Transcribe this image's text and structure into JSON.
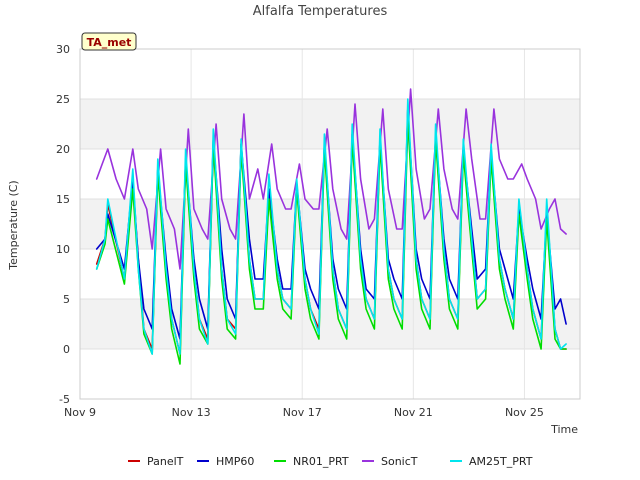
{
  "chart_data": {
    "type": "line",
    "title": "Alfalfa Temperatures",
    "xlabel": "Time",
    "ylabel": "Temperature (C)",
    "tag": "TA_met",
    "ylim": [
      -5,
      30
    ],
    "yticks": [
      -5,
      0,
      5,
      10,
      15,
      20,
      25,
      30
    ],
    "xlim": [
      0,
      18
    ],
    "xticks": [
      {
        "value": 0,
        "label": "Nov 9"
      },
      {
        "value": 4,
        "label": "Nov 13"
      },
      {
        "value": 8,
        "label": "Nov 17"
      },
      {
        "value": 12,
        "label": "Nov 21"
      },
      {
        "value": 16,
        "label": "Nov 25"
      }
    ],
    "grid": true,
    "legend_position": "bottom",
    "daily_extremes": {
      "note_days_from_nov9": [
        0.6,
        1.6,
        2.6,
        3.6,
        4.6,
        5.6,
        6.6,
        7.6,
        8.6,
        9.6,
        10.6,
        11.6,
        12.6,
        13.6,
        14.6,
        15.6,
        16.6,
        17.4
      ]
    },
    "series": [
      {
        "name": "PanelT",
        "color": "#cc0000",
        "x": [
          0.6,
          0.9,
          1.0,
          1.6,
          1.9,
          2.1,
          2.3,
          2.6,
          2.8,
          3.1,
          3.3,
          3.6,
          3.8,
          4.1,
          4.3,
          4.6,
          4.8,
          5.1,
          5.3,
          5.6,
          5.8,
          6.1,
          6.3,
          6.6,
          6.8,
          7.1,
          7.3,
          7.6,
          7.8,
          8.1,
          8.3,
          8.6,
          8.8,
          9.1,
          9.3,
          9.6,
          9.8,
          10.1,
          10.3,
          10.6,
          10.8,
          11.1,
          11.3,
          11.6,
          11.8,
          12.1,
          12.3,
          12.6,
          12.8,
          13.1,
          13.3,
          13.6,
          13.8,
          14.1,
          14.3,
          14.6,
          14.8,
          15.1,
          15.3,
          15.6,
          15.8,
          16.1,
          16.3,
          16.6,
          16.8,
          17.1,
          17.3,
          17.5
        ],
        "y": [
          8.5,
          11,
          14.5,
          7,
          16.5,
          9,
          2,
          0,
          18,
          8,
          3,
          -0.5,
          19,
          8,
          3,
          1,
          21,
          8,
          3,
          2,
          20.5,
          9,
          5,
          5,
          15.5,
          8,
          5,
          4,
          16.5,
          7,
          4,
          2,
          20.5,
          8,
          4,
          2,
          21.5,
          9,
          5,
          3,
          21,
          8,
          5,
          3,
          24,
          9,
          5,
          3,
          21.5,
          10,
          5,
          3,
          20,
          11,
          5,
          6,
          19.5,
          9,
          6,
          3,
          14,
          8,
          4,
          1,
          13.5,
          2,
          0,
          0
        ]
      },
      {
        "name": "HMP60",
        "color": "#0000cc",
        "x": [
          0.6,
          0.9,
          1.0,
          1.6,
          1.9,
          2.1,
          2.3,
          2.6,
          2.8,
          3.1,
          3.3,
          3.6,
          3.8,
          4.1,
          4.3,
          4.6,
          4.8,
          5.1,
          5.3,
          5.6,
          5.8,
          6.1,
          6.3,
          6.6,
          6.8,
          7.1,
          7.3,
          7.6,
          7.8,
          8.1,
          8.3,
          8.6,
          8.8,
          9.1,
          9.3,
          9.6,
          9.8,
          10.1,
          10.3,
          10.6,
          10.8,
          11.1,
          11.3,
          11.6,
          11.8,
          12.1,
          12.3,
          12.6,
          12.8,
          13.1,
          13.3,
          13.6,
          13.8,
          14.1,
          14.3,
          14.6,
          14.8,
          15.1,
          15.3,
          15.6,
          15.8,
          16.1,
          16.3,
          16.6,
          16.8,
          17.1,
          17.3,
          17.5
        ],
        "y": [
          10,
          11,
          13.5,
          8,
          17,
          9,
          4,
          2,
          18,
          9,
          4,
          1,
          19,
          9,
          5,
          2,
          21,
          10,
          5,
          3,
          20.5,
          11,
          7,
          7,
          16,
          9,
          6,
          6,
          16.5,
          8,
          6,
          4,
          20.5,
          9,
          6,
          4,
          21.5,
          10,
          6,
          5,
          21,
          9,
          7,
          5,
          24,
          10,
          7,
          5,
          21.5,
          11,
          7,
          5,
          20,
          12,
          7,
          8,
          19.5,
          10,
          8,
          5,
          14,
          9,
          6,
          3,
          13.5,
          4,
          5,
          2.5
        ]
      },
      {
        "name": "NR01_PRT",
        "color": "#00dd00",
        "x": [
          0.6,
          0.9,
          1.0,
          1.6,
          1.9,
          2.1,
          2.3,
          2.6,
          2.8,
          3.1,
          3.3,
          3.6,
          3.8,
          4.1,
          4.3,
          4.6,
          4.8,
          5.1,
          5.3,
          5.6,
          5.8,
          6.1,
          6.3,
          6.6,
          6.8,
          7.1,
          7.3,
          7.6,
          7.8,
          8.1,
          8.3,
          8.6,
          8.8,
          9.1,
          9.3,
          9.6,
          9.8,
          10.1,
          10.3,
          10.6,
          10.8,
          11.1,
          11.3,
          11.6,
          11.8,
          12.1,
          12.3,
          12.6,
          12.8,
          13.1,
          13.3,
          13.6,
          13.8,
          14.1,
          14.3,
          14.6,
          14.8,
          15.1,
          15.3,
          15.6,
          15.8,
          16.1,
          16.3,
          16.6,
          16.8,
          17.1,
          17.3,
          17.5
        ],
        "y": [
          8,
          10.5,
          13,
          6.5,
          16,
          8,
          1.5,
          -0.5,
          17.5,
          7,
          2,
          -1.5,
          18.5,
          7,
          2,
          0.5,
          20.5,
          7,
          2,
          1,
          20,
          8,
          4,
          4,
          15,
          7,
          4,
          3,
          16,
          6,
          3,
          1,
          20,
          7,
          3,
          1,
          21,
          8,
          4,
          2,
          20.5,
          7,
          4,
          2,
          23,
          8,
          4,
          2,
          21,
          9,
          4,
          2,
          19.5,
          10,
          4,
          5,
          19,
          8,
          5,
          2,
          13.5,
          7,
          3,
          0,
          13,
          1,
          0,
          0
        ]
      },
      {
        "name": "SonicT",
        "color": "#9933dd",
        "x": [
          0.6,
          0.8,
          1.0,
          1.3,
          1.6,
          1.9,
          2.1,
          2.4,
          2.6,
          2.9,
          3.1,
          3.4,
          3.6,
          3.9,
          4.1,
          4.4,
          4.6,
          4.9,
          5.1,
          5.4,
          5.6,
          5.9,
          6.1,
          6.4,
          6.6,
          6.9,
          7.1,
          7.4,
          7.6,
          7.9,
          8.1,
          8.4,
          8.6,
          8.9,
          9.1,
          9.4,
          9.6,
          9.9,
          10.1,
          10.4,
          10.6,
          10.9,
          11.1,
          11.4,
          11.6,
          11.9,
          12.1,
          12.4,
          12.6,
          12.9,
          13.1,
          13.4,
          13.6,
          13.9,
          14.1,
          14.4,
          14.6,
          14.9,
          15.1,
          15.4,
          15.6,
          15.9,
          16.1,
          16.4,
          16.6,
          16.9,
          17.1,
          17.3,
          17.5
        ],
        "y": [
          17,
          18.5,
          20,
          17,
          15,
          20,
          16,
          14,
          10,
          20,
          14,
          12,
          8,
          22,
          14,
          12,
          11,
          22.5,
          15,
          12,
          11,
          23.5,
          15,
          18,
          15,
          20.5,
          16,
          14,
          14,
          18.5,
          15,
          14,
          14,
          22,
          16,
          12,
          11,
          24.5,
          17,
          12,
          13,
          24,
          16,
          12,
          12,
          26,
          18,
          13,
          14,
          24,
          18,
          14,
          13,
          24,
          19,
          13,
          13,
          24,
          19,
          17,
          17,
          18.5,
          17,
          15,
          12,
          14,
          15,
          12,
          11.5
        ]
      },
      {
        "name": "AM25T_PRT",
        "color": "#00e5ee",
        "x": [
          0.6,
          0.9,
          1.0,
          1.6,
          1.9,
          2.1,
          2.3,
          2.6,
          2.8,
          3.1,
          3.3,
          3.6,
          3.8,
          4.1,
          4.3,
          4.6,
          4.8,
          5.1,
          5.3,
          5.6,
          5.8,
          6.1,
          6.3,
          6.6,
          6.8,
          7.1,
          7.3,
          7.6,
          7.8,
          8.1,
          8.3,
          8.6,
          8.8,
          9.1,
          9.3,
          9.6,
          9.8,
          10.1,
          10.3,
          10.6,
          10.8,
          11.1,
          11.3,
          11.6,
          11.8,
          12.1,
          12.3,
          12.6,
          12.8,
          13.1,
          13.3,
          13.6,
          13.8,
          14.1,
          14.3,
          14.6,
          14.8,
          15.1,
          15.3,
          15.6,
          15.8,
          16.1,
          16.3,
          16.6,
          16.8,
          17.1,
          17.3,
          17.5
        ],
        "y": [
          8,
          11,
          15,
          7,
          18,
          8,
          2,
          -0.5,
          19,
          8,
          3,
          -0.5,
          20,
          8,
          3,
          0.5,
          22,
          8,
          3,
          1.5,
          21,
          9,
          5,
          5,
          17.5,
          8,
          5,
          4,
          17,
          7,
          4,
          1.5,
          21.5,
          8,
          4,
          2,
          22.5,
          9,
          5,
          3,
          22,
          8,
          5,
          3,
          25,
          9,
          5,
          3,
          22.5,
          10,
          5,
          3,
          21,
          11,
          5,
          6,
          20.5,
          9,
          6,
          3,
          15,
          8,
          4,
          1,
          15,
          2,
          0,
          0.5
        ]
      }
    ]
  }
}
